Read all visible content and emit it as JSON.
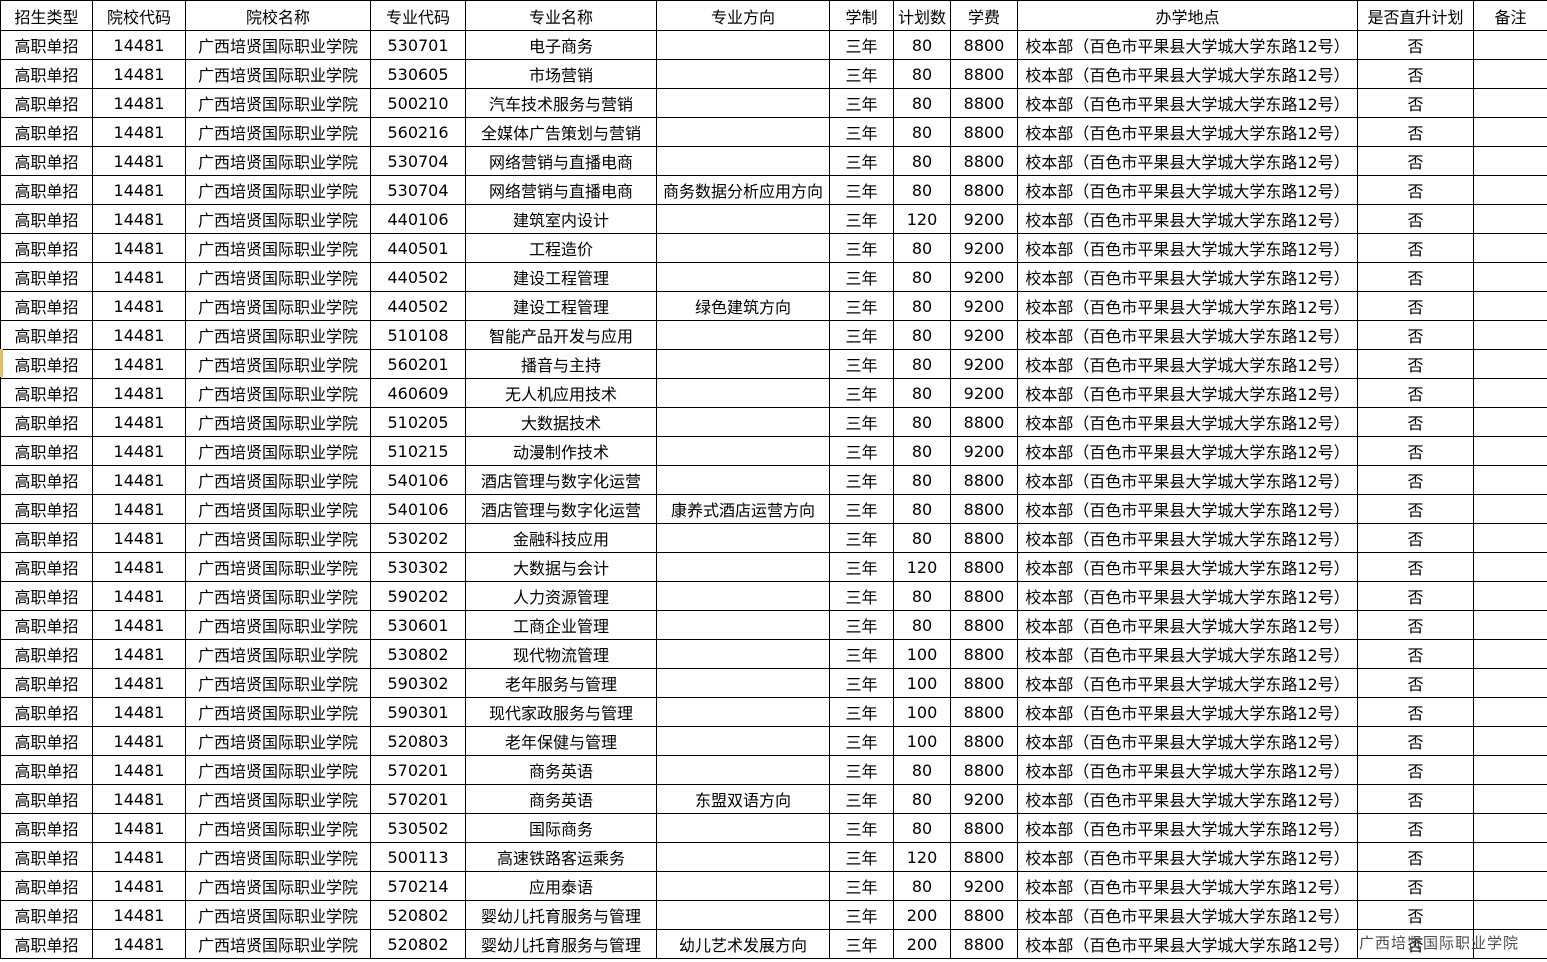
{
  "table": {
    "headers": [
      "招生类型",
      "院校代码",
      "院校名称",
      "专业代码",
      "专业名称",
      "专业方向",
      "学制",
      "计划数",
      "学费",
      "办学地点",
      "是否直升计划",
      "备注"
    ],
    "common": {
      "admission_type": "高职单招",
      "college_code": "14481",
      "college_name": "广西培贤国际职业学院",
      "duration": "三年",
      "location": "校本部（百色市平果县大学城大学东路12号）",
      "direct_promotion": "否",
      "remark": ""
    },
    "rows": [
      {
        "major_code": "530701",
        "major_name": "电子商务",
        "direction": "",
        "plan": "80",
        "fee": "8800"
      },
      {
        "major_code": "530605",
        "major_name": "市场营销",
        "direction": "",
        "plan": "80",
        "fee": "8800"
      },
      {
        "major_code": "500210",
        "major_name": "汽车技术服务与营销",
        "direction": "",
        "plan": "80",
        "fee": "8800"
      },
      {
        "major_code": "560216",
        "major_name": "全媒体广告策划与营销",
        "direction": "",
        "plan": "80",
        "fee": "8800"
      },
      {
        "major_code": "530704",
        "major_name": "网络营销与直播电商",
        "direction": "",
        "plan": "80",
        "fee": "8800"
      },
      {
        "major_code": "530704",
        "major_name": "网络营销与直播电商",
        "direction": "商务数据分析应用方向",
        "plan": "80",
        "fee": "8800"
      },
      {
        "major_code": "440106",
        "major_name": "建筑室内设计",
        "direction": "",
        "plan": "120",
        "fee": "9200"
      },
      {
        "major_code": "440501",
        "major_name": "工程造价",
        "direction": "",
        "plan": "80",
        "fee": "9200"
      },
      {
        "major_code": "440502",
        "major_name": "建设工程管理",
        "direction": "",
        "plan": "80",
        "fee": "9200"
      },
      {
        "major_code": "440502",
        "major_name": "建设工程管理",
        "direction": "绿色建筑方向",
        "plan": "80",
        "fee": "9200"
      },
      {
        "major_code": "510108",
        "major_name": "智能产品开发与应用",
        "direction": "",
        "plan": "80",
        "fee": "9200"
      },
      {
        "major_code": "560201",
        "major_name": "播音与主持",
        "direction": "",
        "plan": "80",
        "fee": "9200"
      },
      {
        "major_code": "460609",
        "major_name": "无人机应用技术",
        "direction": "",
        "plan": "80",
        "fee": "9200"
      },
      {
        "major_code": "510205",
        "major_name": "大数据技术",
        "direction": "",
        "plan": "80",
        "fee": "8800"
      },
      {
        "major_code": "510215",
        "major_name": "动漫制作技术",
        "direction": "",
        "plan": "80",
        "fee": "9200"
      },
      {
        "major_code": "540106",
        "major_name": "酒店管理与数字化运营",
        "direction": "",
        "plan": "80",
        "fee": "8800"
      },
      {
        "major_code": "540106",
        "major_name": "酒店管理与数字化运营",
        "direction": "康养式酒店运营方向",
        "plan": "80",
        "fee": "8800"
      },
      {
        "major_code": "530202",
        "major_name": "金融科技应用",
        "direction": "",
        "plan": "80",
        "fee": "8800"
      },
      {
        "major_code": "530302",
        "major_name": "大数据与会计",
        "direction": "",
        "plan": "120",
        "fee": "8800"
      },
      {
        "major_code": "590202",
        "major_name": "人力资源管理",
        "direction": "",
        "plan": "80",
        "fee": "8800"
      },
      {
        "major_code": "530601",
        "major_name": "工商企业管理",
        "direction": "",
        "plan": "80",
        "fee": "8800"
      },
      {
        "major_code": "530802",
        "major_name": "现代物流管理",
        "direction": "",
        "plan": "100",
        "fee": "8800"
      },
      {
        "major_code": "590302",
        "major_name": "老年服务与管理",
        "direction": "",
        "plan": "100",
        "fee": "8800"
      },
      {
        "major_code": "590301",
        "major_name": "现代家政服务与管理",
        "direction": "",
        "plan": "100",
        "fee": "8800"
      },
      {
        "major_code": "520803",
        "major_name": "老年保健与管理",
        "direction": "",
        "plan": "100",
        "fee": "8800"
      },
      {
        "major_code": "570201",
        "major_name": "商务英语",
        "direction": "",
        "plan": "80",
        "fee": "8800"
      },
      {
        "major_code": "570201",
        "major_name": "商务英语",
        "direction": "东盟双语方向",
        "plan": "80",
        "fee": "9200"
      },
      {
        "major_code": "530502",
        "major_name": "国际商务",
        "direction": "",
        "plan": "80",
        "fee": "8800"
      },
      {
        "major_code": "500113",
        "major_name": "高速铁路客运乘务",
        "direction": "",
        "plan": "120",
        "fee": "8800"
      },
      {
        "major_code": "570214",
        "major_name": "应用泰语",
        "direction": "",
        "plan": "80",
        "fee": "9200"
      },
      {
        "major_code": "520802",
        "major_name": "婴幼儿托育服务与管理",
        "direction": "",
        "plan": "200",
        "fee": "8800"
      },
      {
        "major_code": "520802",
        "major_name": "婴幼儿托育服务与管理",
        "direction": "幼儿艺术发展方向",
        "plan": "200",
        "fee": "8800"
      }
    ]
  },
  "watermark": {
    "text": "广西培贤国际职业学院"
  },
  "colors": {
    "border": "#000000",
    "text": "#000000",
    "watermark_text": "#4d4d4d",
    "left_marker": "#e2c06a",
    "background": "#ffffff"
  }
}
